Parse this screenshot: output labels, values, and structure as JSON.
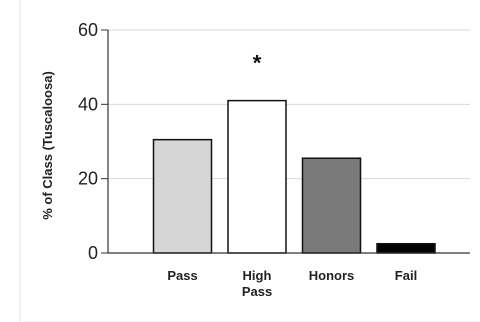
{
  "chart_data": {
    "type": "bar",
    "categories": [
      "Pass",
      "High Pass",
      "Honors",
      "Fail"
    ],
    "category_lines": [
      [
        "Pass"
      ],
      [
        "High",
        "Pass"
      ],
      [
        "Honors"
      ],
      [
        "Fail"
      ]
    ],
    "values": [
      30.5,
      41,
      25.5,
      2.5
    ],
    "bar_colors": [
      "#d6d6d6",
      "#ffffff",
      "#7a7a7a",
      "#000000"
    ],
    "ylabel": "% of Class (Tuscaloosa)",
    "ylim": [
      0,
      60
    ],
    "yticks": [
      0,
      20,
      40,
      60
    ],
    "grid": true,
    "annotations": [
      {
        "text": "*",
        "category": "High Pass"
      }
    ]
  }
}
